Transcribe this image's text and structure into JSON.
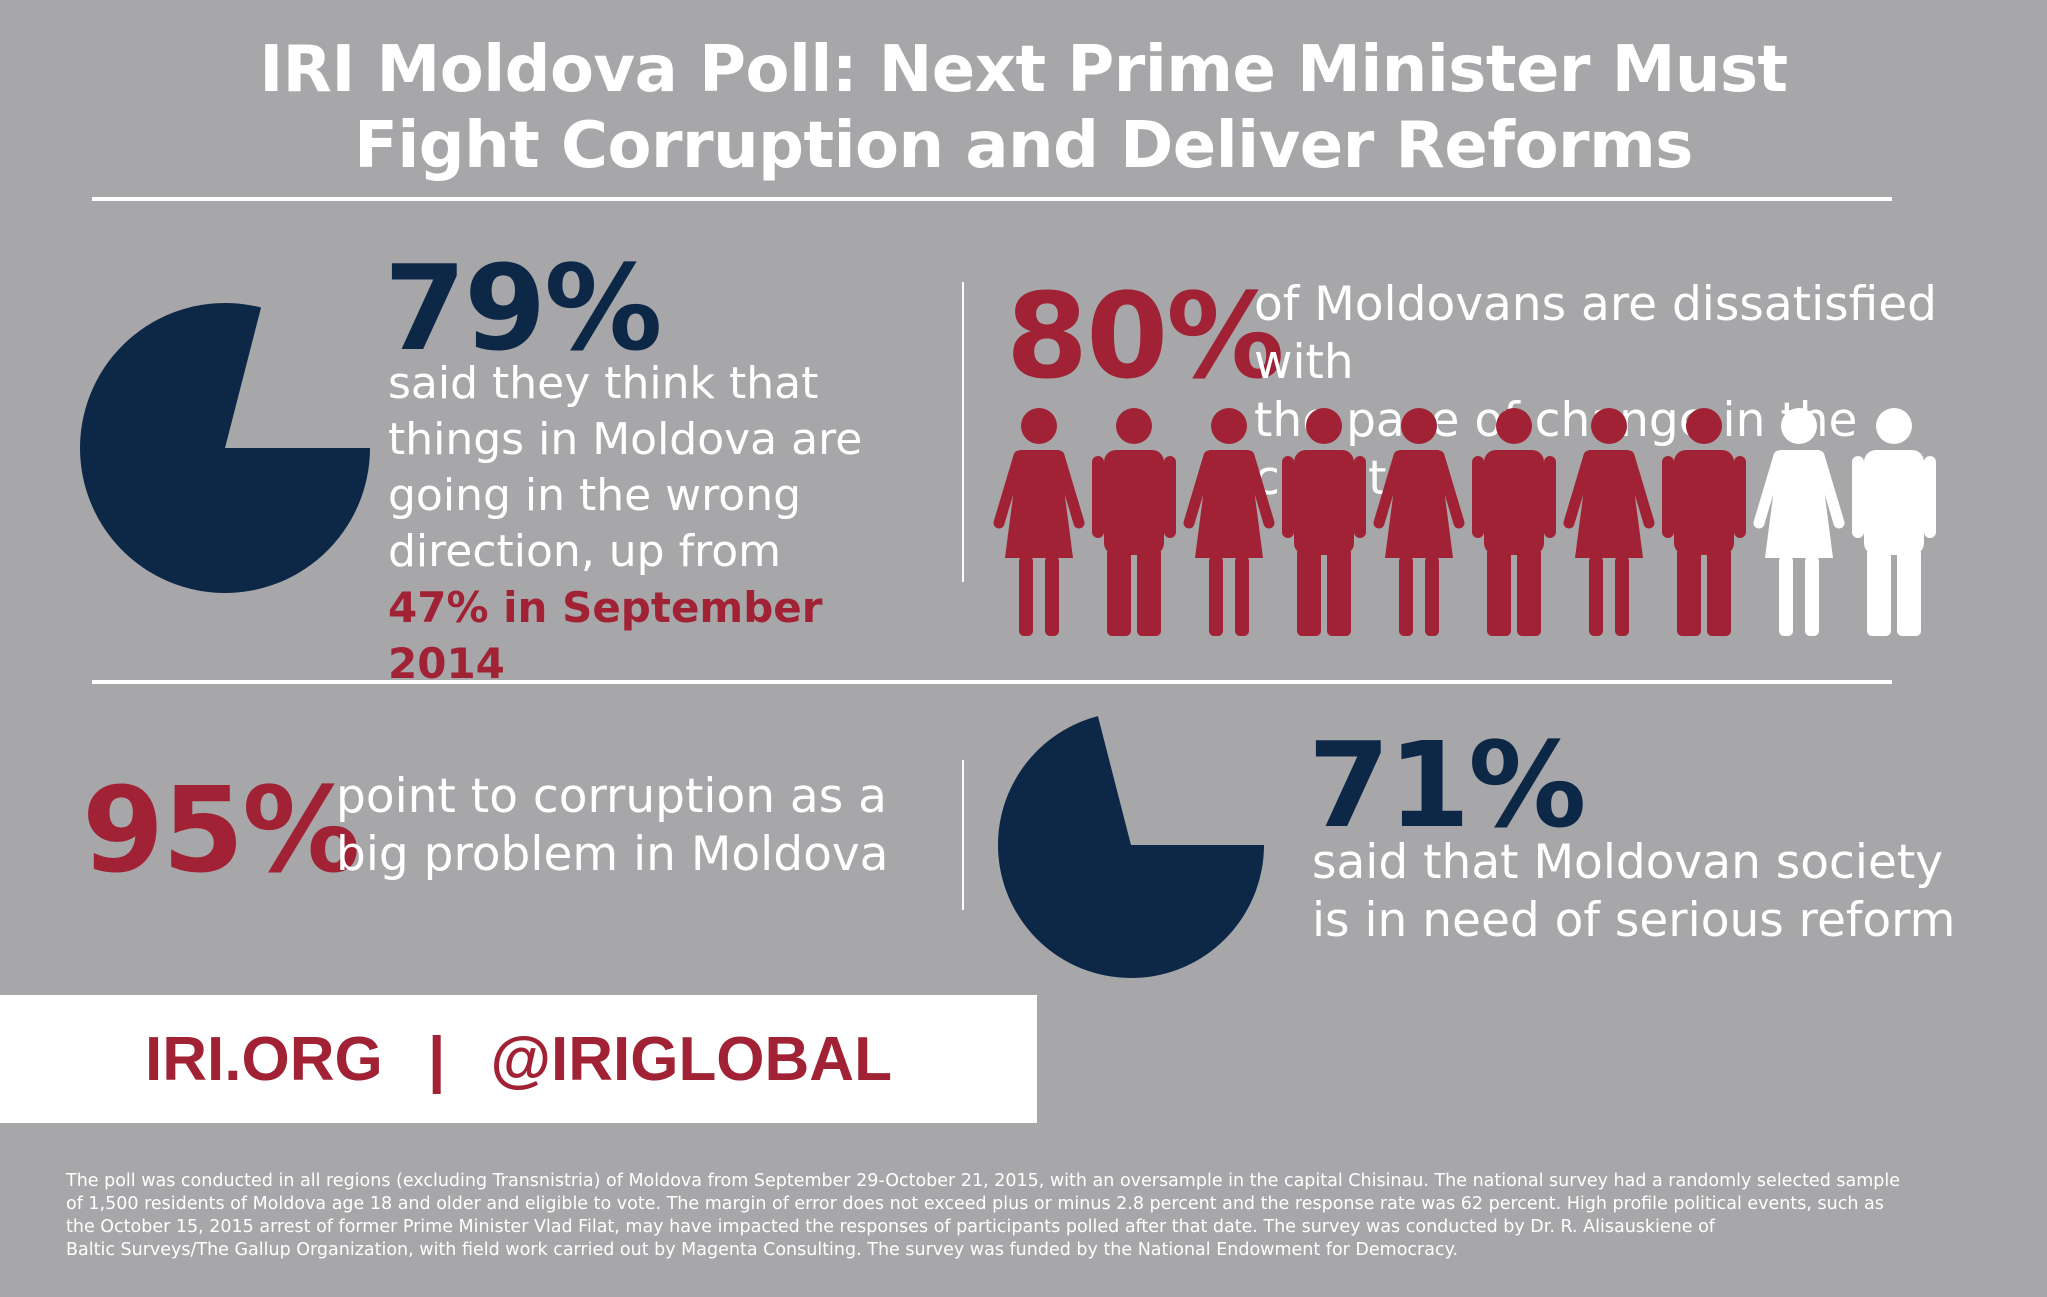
{
  "title": {
    "line1": "IRI Moldova Poll: Next Prime Minister Must",
    "line2": "Fight Corruption and Deliver Reforms"
  },
  "stat_79": {
    "value": "79%",
    "lines": [
      "said they think that",
      "things in Moldova are",
      "going in the wrong",
      "direction, up from"
    ],
    "emphasis": "47% in September 2014"
  },
  "stat_80": {
    "value": "80%",
    "lines": [
      "of Moldovans are dissatisfied with",
      "the pace of change in the country"
    ]
  },
  "stat_95": {
    "value": "95%",
    "lines": [
      "point to corruption as a",
      "big problem in Moldova"
    ]
  },
  "stat_71": {
    "value": "71%",
    "lines": [
      "said that Moldovan society",
      "is in need of serious reform"
    ]
  },
  "footer": {
    "site": "IRI.ORG",
    "separator": "|",
    "handle": "@IRIGLOBAL"
  },
  "methodology": [
    "The poll was conducted in all regions (excluding Transnistria) of Moldova from September 29-October 21, 2015, with an oversample in the capital Chisinau. The national survey had a randomly selected sample",
    "of 1,500 residents of Moldova age 18 and older and eligible to vote. The margin of error does not exceed plus or minus 2.8 percent and the response rate was 62 percent. High profile political events, such as",
    "the October 15, 2015 arrest of former Prime Minister Vlad Filat, may have impacted the responses of participants polled after that date.  The survey was conducted by Dr. R. Alisauskiene of",
    "Baltic Surveys/The Gallup Organization, with field work carried out by Magenta Consulting. The survey was funded by the National Endowment for Democracy."
  ],
  "colors": {
    "background": "#a7a7a9",
    "navy": "#0d2747",
    "red": "#a02234",
    "white": "#ffffff"
  },
  "chart_data": [
    {
      "type": "pie",
      "slices": [
        {
          "value": 79,
          "color": "#0d2747"
        },
        {
          "value": 21,
          "color": "none"
        }
      ]
    },
    {
      "type": "pictogram",
      "total": 10,
      "highlighted": 8,
      "icons": [
        "female-icon",
        "male-icon",
        "female-icon",
        "male-icon",
        "female-icon",
        "male-icon",
        "female-icon",
        "male-icon",
        "female-icon",
        "male-icon"
      ],
      "highlight_color": "#a02234",
      "rest_color": "#ffffff"
    },
    {
      "type": "pie",
      "slices": [
        {
          "value": 71,
          "color": "#0d2747"
        },
        {
          "value": 29,
          "color": "none"
        }
      ]
    }
  ]
}
